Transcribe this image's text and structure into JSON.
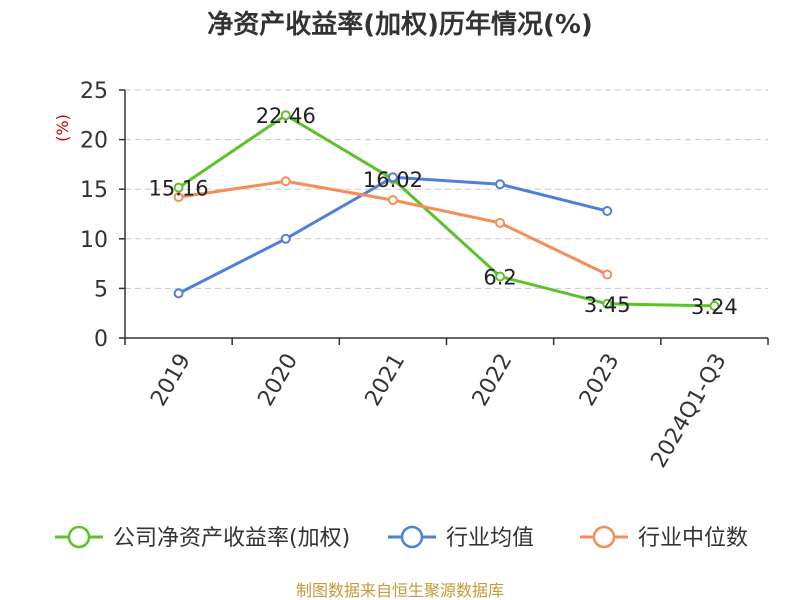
{
  "colors": {
    "series_0": "#5cc12b",
    "series_1": "#4e80d9",
    "series_2": "#f58c5a",
    "ylabel": "#cc0000",
    "source": "#c49a3a"
  },
  "chart_data": {
    "type": "line",
    "title": "净资产收益率(加权)历年情况(%)",
    "ylabel": "(%)",
    "xlabel": "",
    "categories": [
      "2019",
      "2020",
      "2021",
      "2022",
      "2023",
      "2024Q1-Q3"
    ],
    "ylim": [
      0,
      25
    ],
    "yticks": [
      0,
      5,
      10,
      15,
      20,
      25
    ],
    "grid": true,
    "legend_position": "bottom",
    "series": [
      {
        "name": "公司净资产收益率(加权)",
        "values": [
          15.16,
          22.46,
          16.02,
          6.2,
          3.45,
          3.24
        ],
        "labels": [
          "15.16",
          "22.46",
          "16.02",
          "6.2",
          "3.45",
          "3.24"
        ]
      },
      {
        "name": "行业均值",
        "values": [
          4.5,
          10.0,
          16.2,
          15.5,
          12.8,
          null
        ]
      },
      {
        "name": "行业中位数",
        "values": [
          14.2,
          15.8,
          13.9,
          11.6,
          6.4,
          null
        ]
      }
    ]
  },
  "footer": {
    "source": "制图数据来自恒生聚源数据库"
  }
}
